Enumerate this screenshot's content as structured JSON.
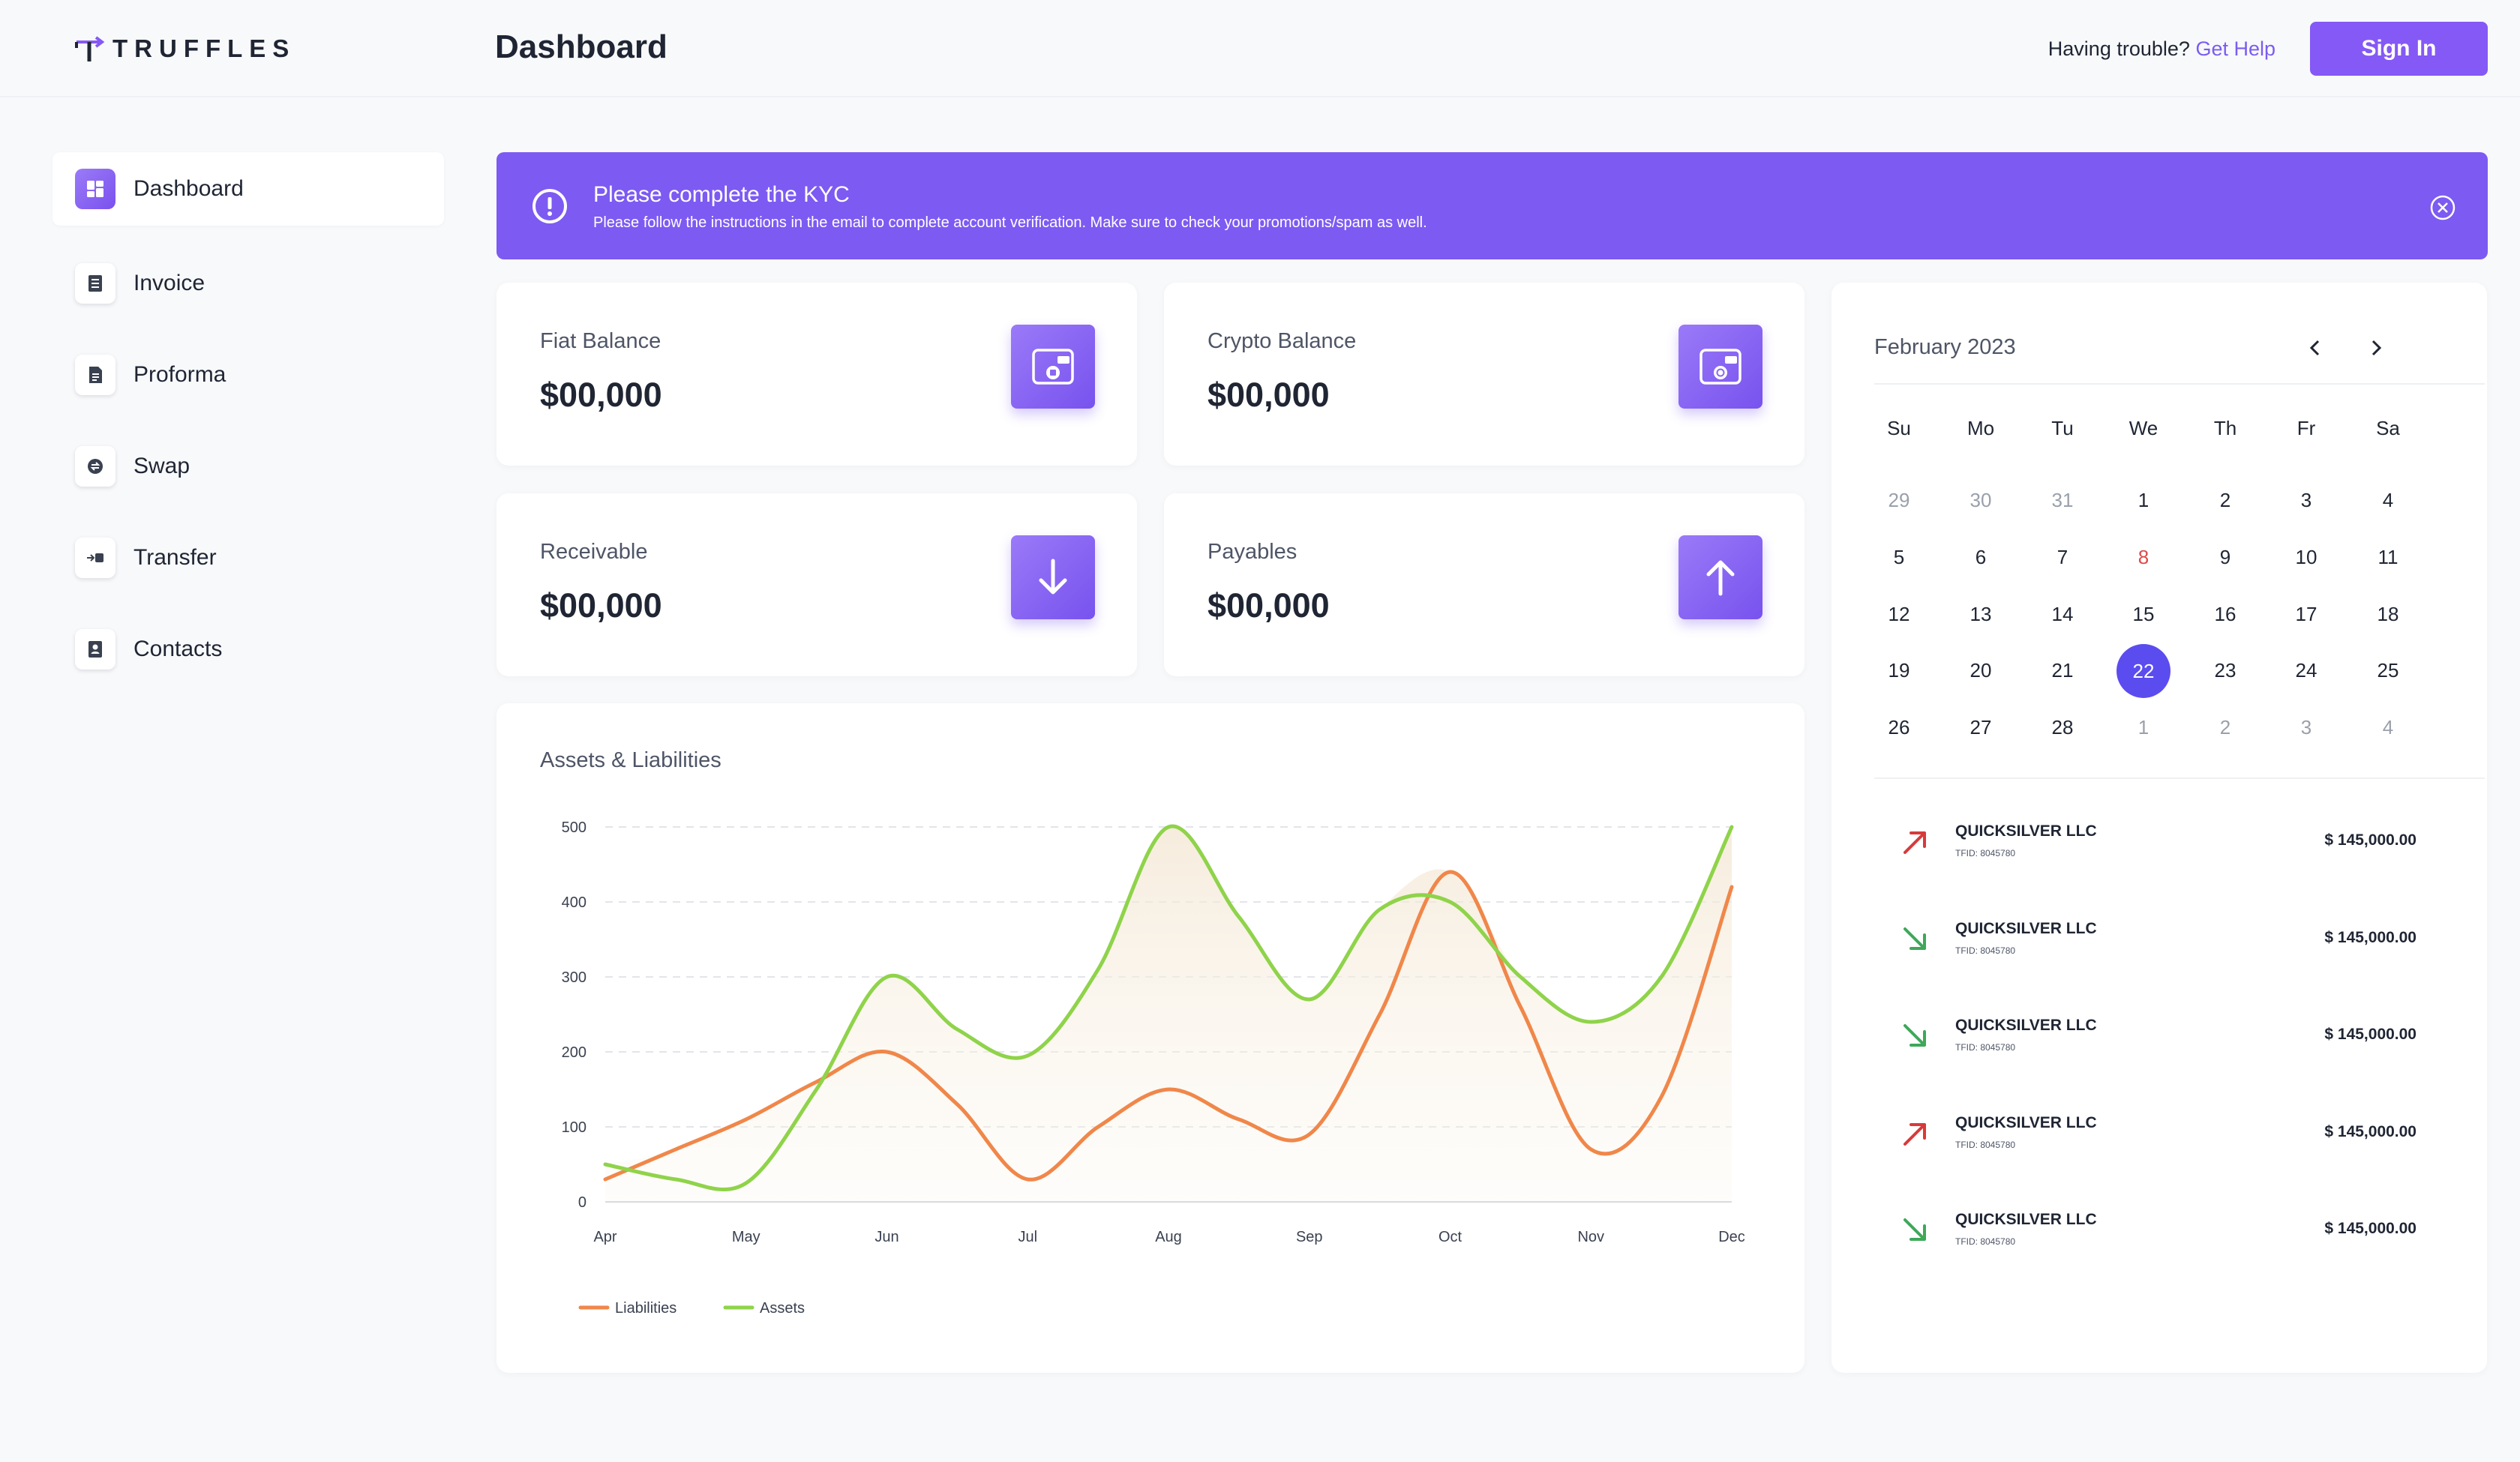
{
  "header": {
    "logo_text": "TRUFFLES",
    "title": "Dashboard",
    "help_text": "Having trouble?",
    "help_link": "Get Help",
    "signin_label": "Sign In"
  },
  "sidebar": {
    "items": [
      {
        "label": "Dashboard",
        "icon": "dashboard-icon",
        "active": true
      },
      {
        "label": "Invoice",
        "icon": "invoice-icon"
      },
      {
        "label": "Proforma",
        "icon": "proforma-icon"
      },
      {
        "label": "Swap",
        "icon": "swap-icon"
      },
      {
        "label": "Transfer",
        "icon": "transfer-icon"
      },
      {
        "label": "Contacts",
        "icon": "contacts-icon"
      }
    ]
  },
  "kyc": {
    "title": "Please complete the KYC",
    "message": "Please follow the instructions in the email to complete account verification. Make sure to check your promotions/spam as well."
  },
  "stats": [
    {
      "label": "Fiat Balance",
      "value": "$00,000",
      "icon": "wallet-icon"
    },
    {
      "label": "Crypto Balance",
      "value": "$00,000",
      "icon": "crypto-wallet-icon"
    },
    {
      "label": "Receivable",
      "value": "$00,000",
      "icon": "arrow-down-icon"
    },
    {
      "label": "Payables",
      "value": "$00,000",
      "icon": "arrow-up-icon"
    }
  ],
  "chart_data": {
    "type": "line",
    "title": "Assets & Liabilities",
    "categories": [
      "Apr",
      "May",
      "Jun",
      "Jul",
      "Aug",
      "Sep",
      "Oct",
      "Nov",
      "Dec"
    ],
    "x": [
      "Apr",
      "Apr/May",
      "May",
      "May/Jun",
      "Jun",
      "Jun/Jul",
      "Jul",
      "Jul/Aug",
      "Aug",
      "Aug/Sep",
      "Sep",
      "Sep/Oct",
      "Oct",
      "Oct/Nov",
      "Nov",
      "Nov/Dec",
      "Dec"
    ],
    "series": [
      {
        "name": "Liabilities",
        "color": "#f0874a",
        "values": [
          30,
          70,
          110,
          160,
          200,
          130,
          30,
          100,
          150,
          110,
          90,
          250,
          440,
          260,
          70,
          140,
          420
        ]
      },
      {
        "name": "Assets",
        "color": "#8fd34a",
        "values": [
          50,
          30,
          25,
          150,
          300,
          230,
          195,
          310,
          500,
          380,
          270,
          390,
          400,
          300,
          240,
          300,
          500
        ]
      }
    ],
    "yticks": [
      0,
      100,
      200,
      300,
      400,
      500
    ],
    "ylim": [
      0,
      500
    ],
    "grid": true,
    "legend_position": "bottom-left"
  },
  "calendar": {
    "month": "February 2023",
    "weekdays": [
      "Su",
      "Mo",
      "Tu",
      "We",
      "Th",
      "Fr",
      "Sa"
    ],
    "weeks": [
      [
        "29",
        "30",
        "31",
        "1",
        "2",
        "3",
        "4"
      ],
      [
        "5",
        "6",
        "7",
        "8",
        "9",
        "10",
        "11"
      ],
      [
        "12",
        "13",
        "14",
        "15",
        "16",
        "17",
        "18"
      ],
      [
        "19",
        "20",
        "21",
        "22",
        "23",
        "24",
        "25"
      ],
      [
        "26",
        "27",
        "28",
        "1",
        "2",
        "3",
        "4"
      ]
    ],
    "selected": "22",
    "holiday": "8"
  },
  "transactions": [
    {
      "name": "QUICKSILVER LLC",
      "id": "TFID: 8045780",
      "amount": "$ 145,000.00",
      "direction": "out"
    },
    {
      "name": "QUICKSILVER LLC",
      "id": "TFID: 8045780",
      "amount": "$ 145,000.00",
      "direction": "in"
    },
    {
      "name": "QUICKSILVER LLC",
      "id": "TFID: 8045780",
      "amount": "$ 145,000.00",
      "direction": "in"
    },
    {
      "name": "QUICKSILVER LLC",
      "id": "TFID: 8045780",
      "amount": "$ 145,000.00",
      "direction": "out"
    },
    {
      "name": "QUICKSILVER LLC",
      "id": "TFID: 8045780",
      "amount": "$ 145,000.00",
      "direction": "in"
    }
  ],
  "colors": {
    "accent": "#8559f5",
    "banner": "#7d5af2",
    "selected_day": "#5b4cf0",
    "out_arrow": "#d83a3a",
    "in_arrow": "#3fa85a"
  }
}
